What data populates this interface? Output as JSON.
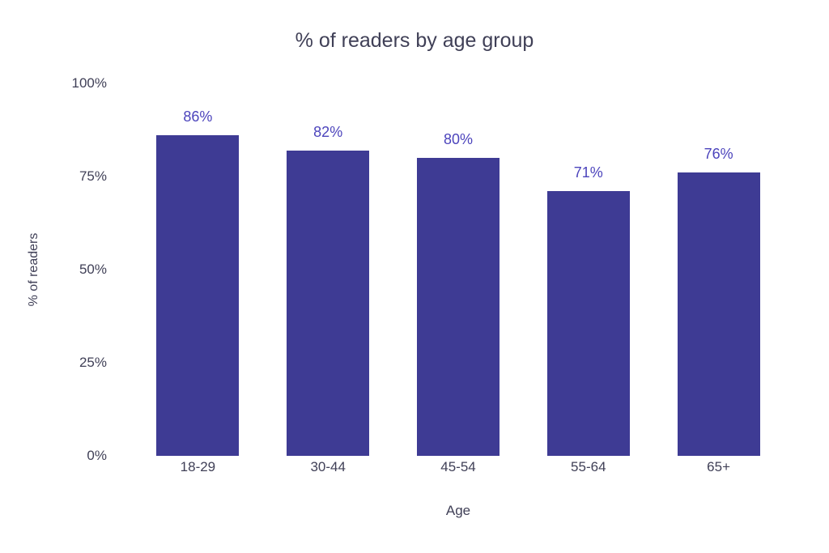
{
  "chart_data": {
    "type": "bar",
    "title": "% of readers by age group",
    "categories": [
      "18-29",
      "30-44",
      "45-54",
      "55-64",
      "65+"
    ],
    "values": [
      86,
      82,
      80,
      71,
      76
    ],
    "data_labels": [
      "86%",
      "82%",
      "80%",
      "71%",
      "76%"
    ],
    "xlabel": "Age",
    "ylabel": "% of readers",
    "ylim": [
      0,
      100
    ],
    "ytick_labels": [
      "0%",
      "25%",
      "50%",
      "75%",
      "100%"
    ],
    "grid": false,
    "legend_position": "none",
    "colors": {
      "bar": "#3e3b94",
      "data_label": "#4c44bc",
      "axis_text": "#404057",
      "background": "#ffffff"
    }
  }
}
